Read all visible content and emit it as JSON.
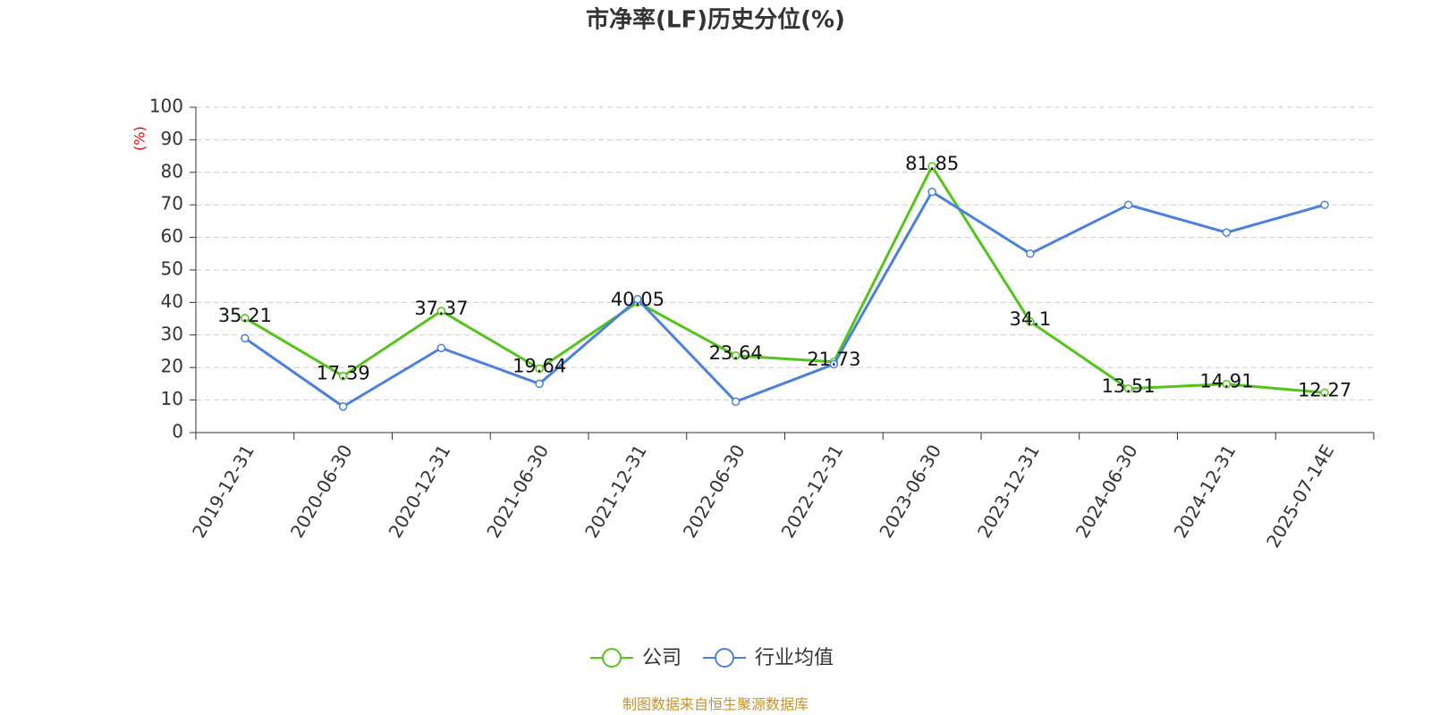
{
  "chart_data": {
    "type": "line",
    "title": "市净率(LF)历史分位(%)",
    "y_label": "(%)",
    "source": "制图数据来自恒生聚源数据库",
    "categories": [
      "2019-12-31",
      "2020-06-30",
      "2020-12-31",
      "2021-06-30",
      "2021-12-31",
      "2022-06-30",
      "2022-12-31",
      "2023-06-30",
      "2023-12-31",
      "2024-06-30",
      "2024-12-31",
      "2025-07-14E"
    ],
    "series": [
      {
        "name": "公司",
        "color": "#52c41a",
        "data_labels": true,
        "values": [
          35.21,
          17.39,
          37.37,
          19.64,
          40.05,
          23.64,
          21.73,
          81.85,
          34.1,
          13.51,
          14.91,
          12.27
        ]
      },
      {
        "name": "行业均值",
        "color": "#4a80e0",
        "data_labels": false,
        "values": [
          29,
          8,
          26,
          15,
          41,
          9.5,
          21,
          74,
          55,
          70,
          61.5,
          70
        ]
      }
    ],
    "ylim": [
      0,
      100
    ],
    "yticks": [
      0,
      10,
      20,
      30,
      40,
      50,
      60,
      70,
      80,
      90,
      100
    ],
    "grid": true
  }
}
